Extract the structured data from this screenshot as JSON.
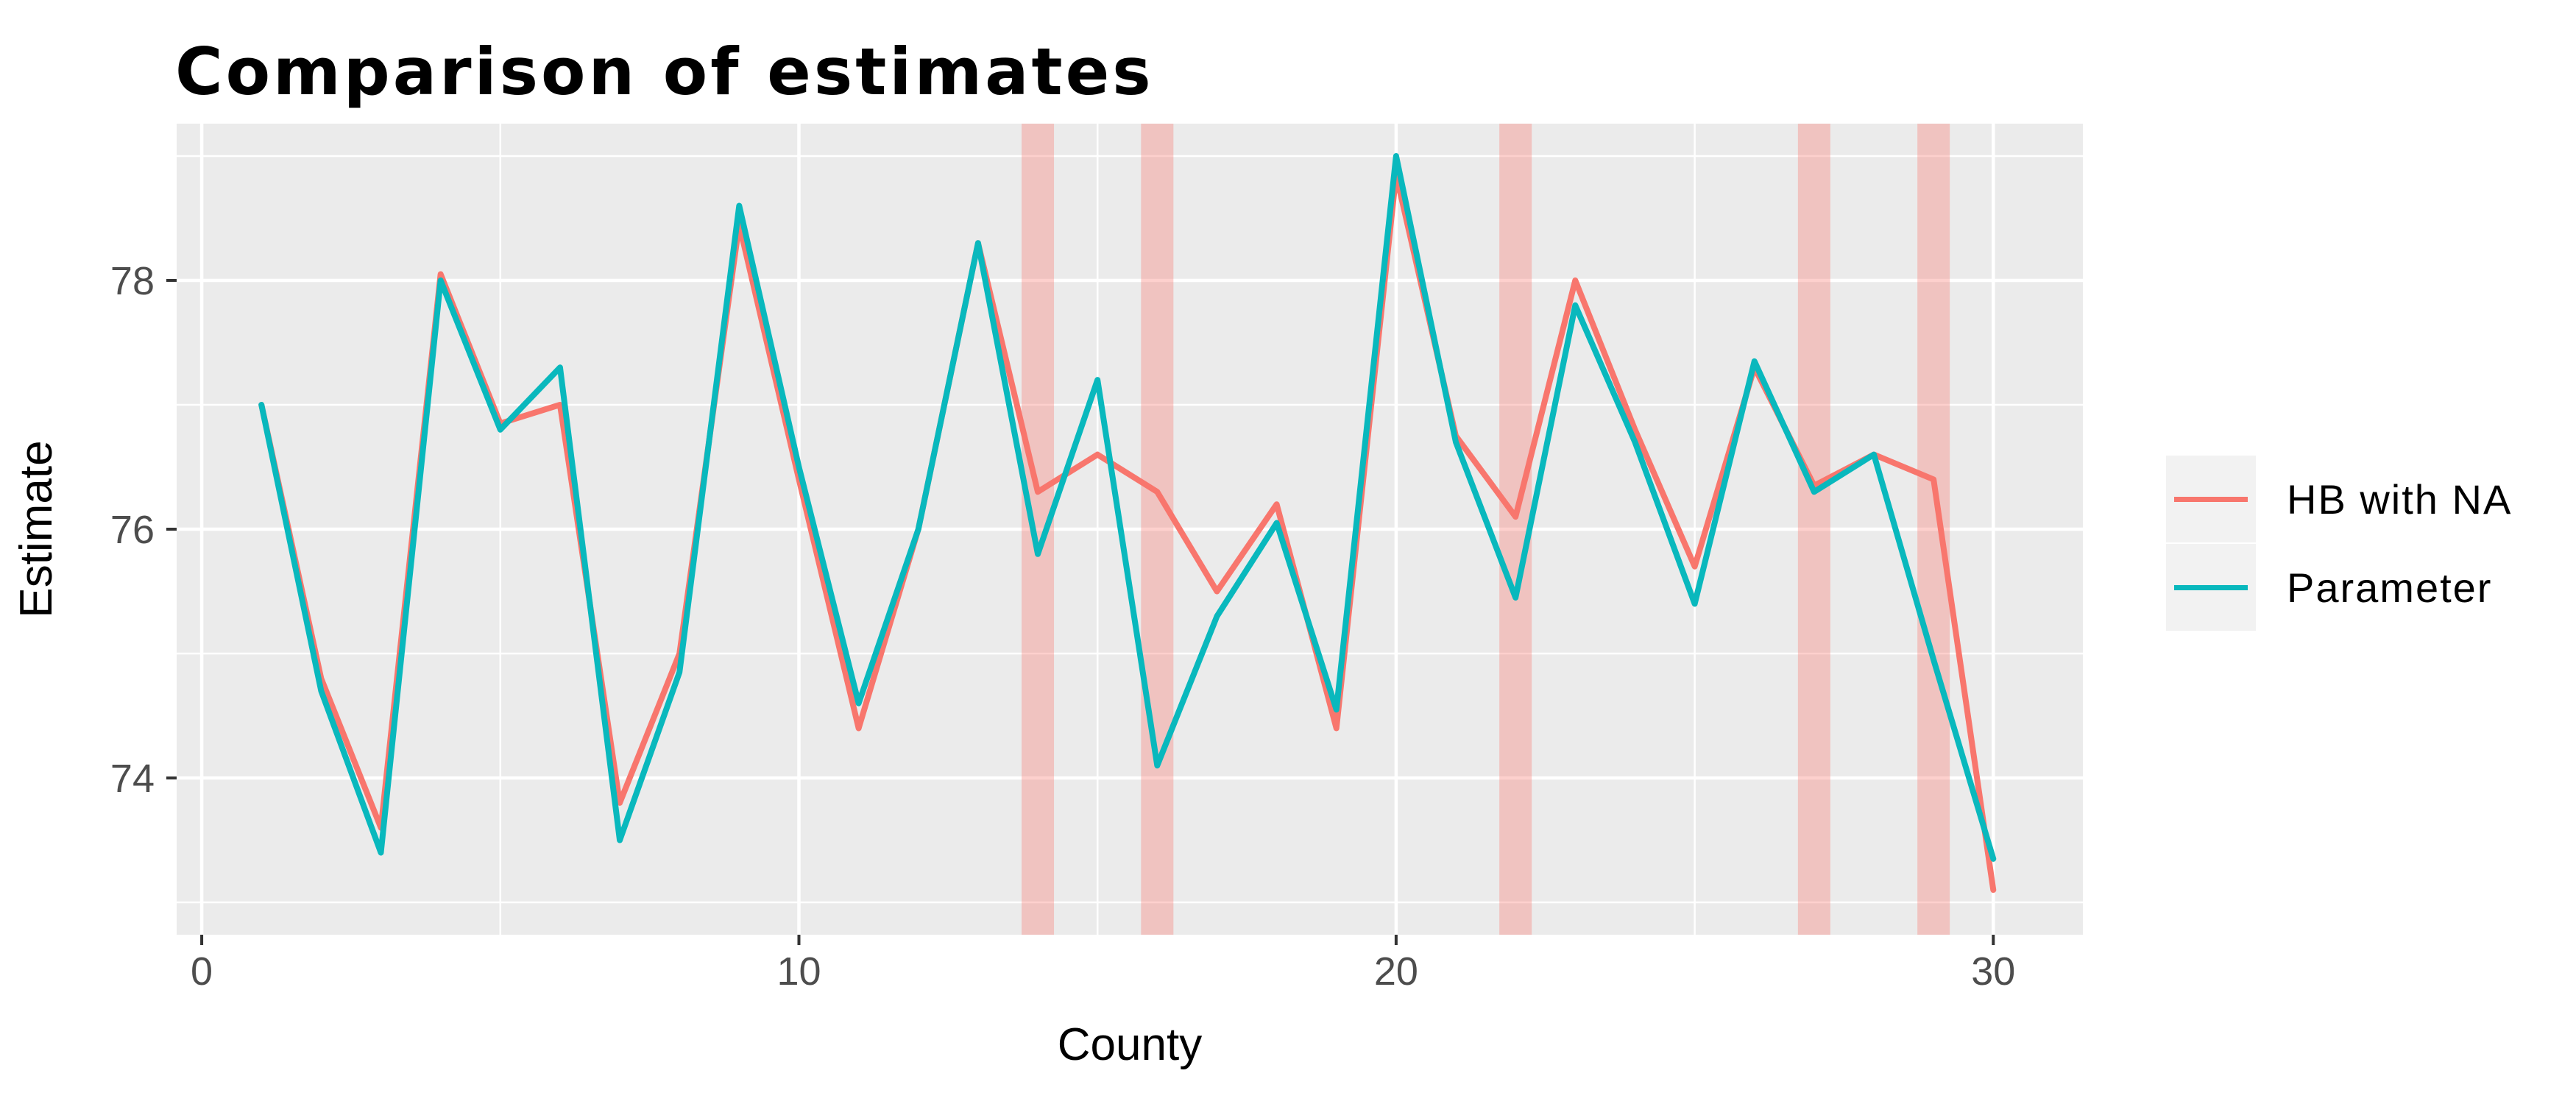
{
  "chart_data": {
    "type": "line",
    "title": "Comparison of estimates",
    "xlabel": "County",
    "ylabel": "Estimate",
    "x": [
      1,
      2,
      3,
      4,
      5,
      6,
      7,
      8,
      9,
      10,
      11,
      12,
      13,
      14,
      15,
      16,
      17,
      18,
      19,
      20,
      21,
      22,
      23,
      24,
      25,
      26,
      27,
      28,
      29,
      30
    ],
    "series": [
      {
        "name": "HB with NA",
        "color": "#F8766D",
        "values": [
          77.0,
          74.8,
          73.6,
          78.05,
          76.85,
          77.0,
          73.8,
          75.0,
          78.45,
          76.4,
          74.4,
          76.0,
          78.3,
          76.3,
          76.6,
          76.3,
          75.5,
          76.2,
          74.4,
          78.85,
          76.75,
          76.1,
          78.0,
          76.8,
          75.7,
          77.3,
          76.35,
          76.6,
          76.4,
          73.1
        ]
      },
      {
        "name": "Parameter",
        "color": "#09B8BD",
        "values": [
          77.0,
          74.7,
          73.4,
          78.0,
          76.8,
          77.3,
          73.5,
          74.85,
          78.6,
          76.5,
          74.6,
          76.0,
          78.3,
          75.8,
          77.2,
          74.1,
          75.3,
          76.05,
          74.55,
          79.0,
          76.7,
          75.45,
          77.8,
          76.7,
          75.4,
          77.35,
          76.3,
          76.6,
          74.95,
          73.35
        ]
      }
    ],
    "highlighted_counties": [
      14,
      16,
      22,
      27,
      29
    ],
    "x_ticks": [
      0,
      10,
      20,
      30
    ],
    "x_minor": [
      5,
      15,
      25
    ],
    "y_ticks": [
      74,
      76,
      78
    ],
    "y_minor": [
      73,
      75,
      77,
      79
    ],
    "xlim": [
      -0.42,
      31.5
    ],
    "ylim": [
      72.74,
      79.26
    ],
    "grid": "on",
    "legend_position": "right",
    "colors": {
      "background": "#FFFFFF",
      "panel": "#EBEBEB",
      "grid": "#FFFFFF",
      "band": "#F8766D",
      "band_opacity": 0.34,
      "tick_text": "#4D4D4D",
      "tick_mark": "#333333",
      "text": "#000000",
      "legend_key": "#F2F2F2"
    }
  }
}
